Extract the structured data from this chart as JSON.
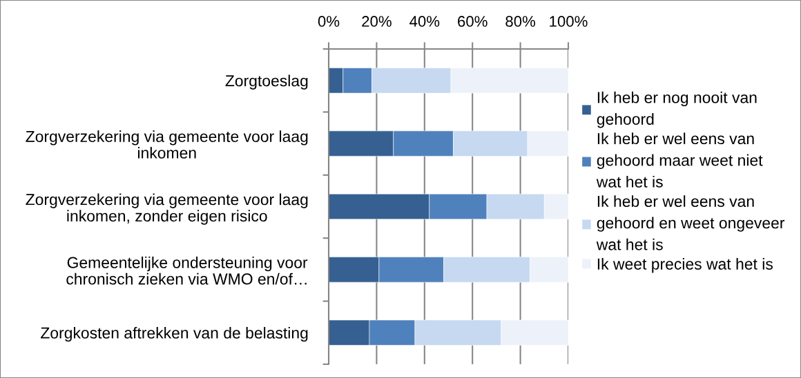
{
  "chart_data": {
    "type": "bar",
    "orientation": "horizontal",
    "stacked": true,
    "categories": [
      "Zorgtoeslag",
      "Zorgverzekering via gemeente voor laag\ninkomen",
      "Zorgverzekering via gemeente voor laag\ninkomen, zonder eigen risico",
      "Gemeentelijke ondersteuning voor\nchronisch zieken via WMO en/of…",
      "Zorgkosten aftrekken van de belasting"
    ],
    "series": [
      {
        "name": "Ik heb er nog nooit van\ngehoord",
        "color": "#366092",
        "values": [
          6,
          27,
          42,
          21,
          17
        ]
      },
      {
        "name": "Ik heb er wel eens van\ngehoord maar weet niet\nwat het is",
        "color": "#4f81bd",
        "values": [
          12,
          25,
          24,
          27,
          19
        ]
      },
      {
        "name": "Ik heb er wel eens van\ngehoord en weet ongeveer\nwat het is",
        "color": "#c6d9f1",
        "values": [
          33,
          31,
          24,
          36,
          36
        ]
      },
      {
        "name": "Ik weet precies wat het is",
        "color": "#edf2fa",
        "values": [
          49,
          17,
          10,
          16,
          28
        ]
      }
    ],
    "xlim": [
      0,
      100
    ],
    "xticks": [
      {
        "value": 0,
        "label": "0%"
      },
      {
        "value": 20,
        "label": "20%"
      },
      {
        "value": 40,
        "label": "40%"
      },
      {
        "value": 60,
        "label": "60%"
      },
      {
        "value": 80,
        "label": "80%"
      },
      {
        "value": 100,
        "label": "100%"
      }
    ],
    "grid": "x",
    "legend": "right"
  }
}
